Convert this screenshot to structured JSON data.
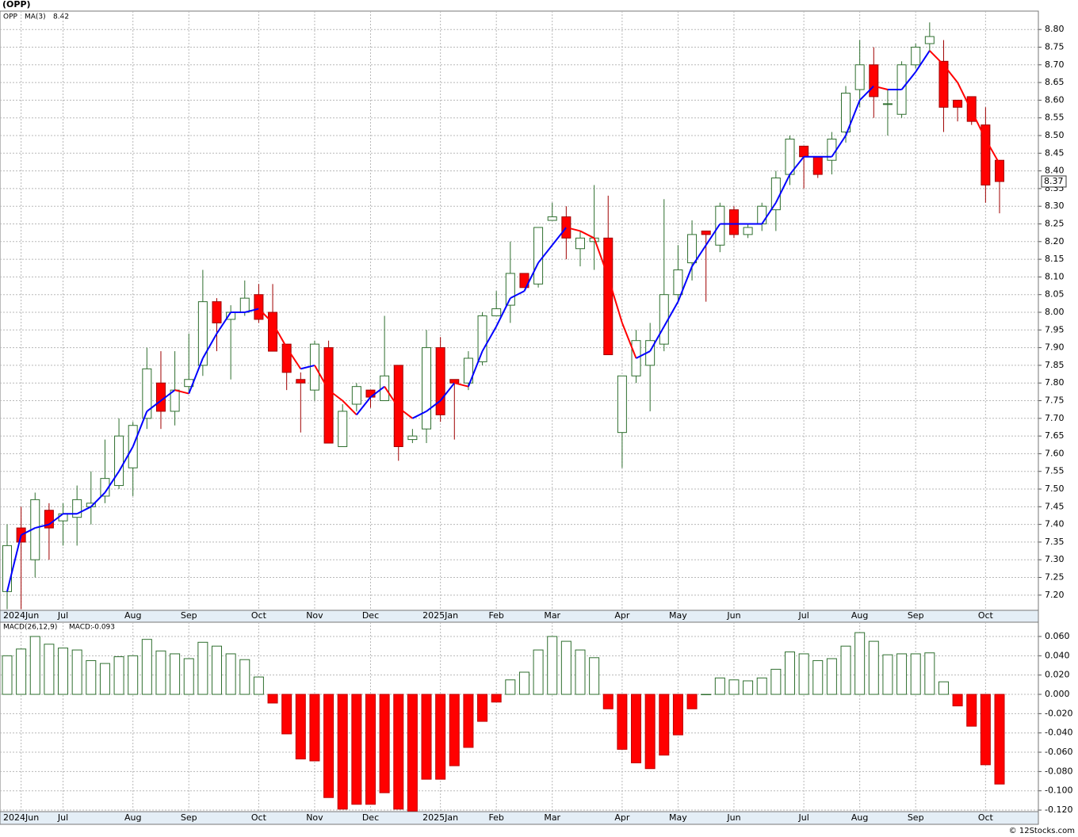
{
  "chart_data": [
    {
      "type": "candlestick",
      "title": "(OPP)",
      "name": "OPP",
      "categories": [
        null,
        "2024Jun",
        null,
        null,
        "Jul",
        null,
        null,
        null,
        null,
        "Aug",
        null,
        null,
        null,
        "Sep",
        null,
        null,
        null,
        null,
        "Oct",
        null,
        null,
        null,
        "Nov",
        null,
        null,
        null,
        "Dec",
        null,
        null,
        null,
        null,
        "2025Jan",
        null,
        null,
        null,
        "Feb",
        null,
        null,
        null,
        "Mar",
        null,
        null,
        null,
        null,
        "Apr",
        null,
        null,
        null,
        "May",
        null,
        null,
        null,
        "Jun",
        null,
        null,
        null,
        null,
        "Jul",
        null,
        null,
        null,
        "Aug",
        null,
        null,
        null,
        "Sep",
        null,
        null,
        null,
        null,
        "Oct",
        null
      ],
      "open": [
        7.21,
        7.39,
        7.3,
        7.44,
        7.41,
        7.42,
        7.45,
        7.48,
        7.51,
        7.56,
        7.7,
        7.8,
        7.72,
        7.79,
        7.85,
        8.03,
        7.98,
        8.0,
        8.05,
        8.0,
        7.91,
        7.81,
        7.78,
        7.9,
        7.62,
        7.74,
        7.78,
        7.75,
        7.85,
        7.64,
        7.67,
        7.9,
        7.81,
        7.8,
        7.86,
        7.99,
        8.02,
        8.11,
        8.08,
        8.26,
        8.27,
        8.18,
        8.2,
        8.21,
        7.66,
        7.82,
        7.85,
        7.91,
        8.05,
        8.14,
        8.23,
        8.19,
        8.29,
        8.22,
        8.25,
        8.29,
        8.39,
        8.47,
        8.44,
        8.43,
        8.51,
        8.63,
        8.7,
        8.59,
        8.56,
        8.7,
        8.76,
        8.71,
        8.6,
        8.61,
        8.53,
        8.43
      ],
      "high": [
        7.4,
        7.45,
        7.49,
        7.46,
        7.46,
        7.51,
        7.55,
        7.64,
        7.7,
        7.69,
        7.9,
        7.89,
        7.89,
        7.94,
        8.12,
        8.04,
        8.02,
        8.09,
        8.08,
        8.08,
        7.91,
        7.83,
        7.92,
        7.92,
        7.74,
        7.8,
        7.78,
        7.99,
        7.85,
        7.67,
        7.95,
        7.93,
        7.81,
        7.89,
        8.0,
        8.06,
        8.2,
        8.11,
        8.24,
        8.31,
        8.3,
        8.23,
        8.36,
        8.33,
        7.82,
        7.95,
        7.97,
        8.32,
        8.19,
        8.26,
        8.23,
        8.31,
        8.3,
        8.25,
        8.31,
        8.4,
        8.5,
        8.47,
        8.44,
        8.51,
        8.64,
        8.77,
        8.75,
        8.63,
        8.71,
        8.76,
        8.82,
        8.77,
        8.6,
        8.61,
        8.58,
        8.43
      ],
      "low": [
        7.16,
        7.16,
        7.25,
        7.3,
        7.34,
        7.34,
        7.4,
        7.46,
        7.5,
        7.48,
        7.67,
        7.67,
        7.68,
        7.77,
        7.82,
        7.89,
        7.81,
        7.99,
        7.97,
        7.89,
        7.78,
        7.66,
        7.75,
        7.63,
        7.62,
        7.72,
        7.73,
        7.75,
        7.58,
        7.63,
        7.63,
        7.69,
        7.64,
        7.78,
        7.85,
        7.99,
        7.97,
        8.07,
        8.07,
        8.26,
        8.15,
        8.13,
        8.12,
        7.88,
        7.56,
        7.8,
        7.72,
        7.89,
        8.03,
        8.09,
        8.03,
        8.17,
        8.21,
        8.21,
        8.23,
        8.23,
        8.36,
        8.35,
        8.38,
        8.39,
        8.48,
        8.58,
        8.55,
        8.5,
        8.55,
        8.69,
        8.74,
        8.51,
        8.54,
        8.53,
        8.31,
        8.28
      ],
      "close": [
        7.34,
        7.35,
        7.47,
        7.39,
        7.43,
        7.47,
        7.46,
        7.53,
        7.65,
        7.68,
        7.84,
        7.72,
        7.78,
        7.81,
        8.03,
        7.97,
        8.0,
        8.04,
        7.98,
        7.89,
        7.83,
        7.8,
        7.91,
        7.63,
        7.72,
        7.79,
        7.76,
        7.82,
        7.62,
        7.65,
        7.9,
        7.71,
        7.8,
        7.87,
        7.99,
        8.01,
        8.11,
        8.07,
        8.24,
        8.27,
        8.21,
        8.21,
        8.21,
        7.88,
        7.82,
        7.92,
        7.92,
        8.05,
        8.12,
        8.22,
        8.22,
        8.3,
        8.22,
        8.24,
        8.3,
        8.38,
        8.49,
        8.44,
        8.39,
        8.49,
        8.62,
        8.7,
        8.61,
        8.59,
        8.7,
        8.75,
        8.78,
        8.58,
        8.58,
        8.54,
        8.36,
        8.37
      ],
      "up_fill": "#ffffff",
      "up_stroke": "#2f6f2f",
      "down_fill": "#ff0000",
      "down_stroke": "#a00000",
      "series": [
        {
          "name": "MA(3)",
          "rising_color": "#0000ff",
          "falling_color": "#ff0000",
          "values": [
            7.21,
            7.37,
            7.39,
            7.4,
            7.43,
            7.43,
            7.45,
            7.49,
            7.55,
            7.62,
            7.72,
            7.75,
            7.78,
            7.77,
            7.87,
            7.94,
            8.0,
            8.0,
            8.01,
            7.97,
            7.9,
            7.84,
            7.85,
            7.78,
            7.75,
            7.71,
            7.76,
            7.79,
            7.73,
            7.7,
            7.72,
            7.75,
            7.8,
            7.79,
            7.89,
            7.96,
            8.04,
            8.06,
            8.14,
            8.19,
            8.24,
            8.23,
            8.21,
            8.1,
            7.97,
            7.87,
            7.89,
            7.96,
            8.03,
            8.13,
            8.19,
            8.25,
            8.25,
            8.25,
            8.25,
            8.31,
            8.39,
            8.44,
            8.44,
            8.44,
            8.5,
            8.6,
            8.64,
            8.63,
            8.63,
            8.68,
            8.74,
            8.7,
            8.65,
            8.57,
            8.49,
            8.42
          ]
        }
      ],
      "ylim": [
        7.157,
        8.852
      ],
      "yticks": [
        {
          "value": 7.2,
          "label": "7.20"
        },
        {
          "value": 7.25,
          "label": "7.25"
        },
        {
          "value": 7.3,
          "label": "7.30"
        },
        {
          "value": 7.35,
          "label": "7.35"
        },
        {
          "value": 7.4,
          "label": "7.40"
        },
        {
          "value": 7.45,
          "label": "7.45"
        },
        {
          "value": 7.5,
          "label": "7.50"
        },
        {
          "value": 7.55,
          "label": "7.55"
        },
        {
          "value": 7.6,
          "label": "7.60"
        },
        {
          "value": 7.65,
          "label": "7.65"
        },
        {
          "value": 7.7,
          "label": "7.70"
        },
        {
          "value": 7.75,
          "label": "7.75"
        },
        {
          "value": 7.8,
          "label": "7.80"
        },
        {
          "value": 7.85,
          "label": "7.85"
        },
        {
          "value": 7.9,
          "label": "7.90"
        },
        {
          "value": 7.95,
          "label": "7.95"
        },
        {
          "value": 8.0,
          "label": "8.00"
        },
        {
          "value": 8.05,
          "label": "8.05"
        },
        {
          "value": 8.1,
          "label": "8.10"
        },
        {
          "value": 8.15,
          "label": "8.15"
        },
        {
          "value": 8.2,
          "label": "8.20"
        },
        {
          "value": 8.25,
          "label": "8.25"
        },
        {
          "value": 8.3,
          "label": "8.30"
        },
        {
          "value": 8.35,
          "label": "8.35"
        },
        {
          "value": 8.4,
          "label": "8.40"
        },
        {
          "value": 8.45,
          "label": "8.45"
        },
        {
          "value": 8.5,
          "label": "8.50"
        },
        {
          "value": 8.55,
          "label": "8.55"
        },
        {
          "value": 8.6,
          "label": "8.60"
        },
        {
          "value": 8.65,
          "label": "8.65"
        },
        {
          "value": 8.7,
          "label": "8.70"
        },
        {
          "value": 8.75,
          "label": "8.75"
        },
        {
          "value": 8.8,
          "label": "8.80"
        }
      ],
      "grid": true
    },
    {
      "type": "bar",
      "title": "MACD(26,12,9)",
      "value_name": "MACD:",
      "categories": [
        null,
        "2024Jun",
        null,
        null,
        "Jul",
        null,
        null,
        null,
        null,
        "Aug",
        null,
        null,
        null,
        "Sep",
        null,
        null,
        null,
        null,
        "Oct",
        null,
        null,
        null,
        "Nov",
        null,
        null,
        null,
        "Dec",
        null,
        null,
        null,
        null,
        "2025Jan",
        null,
        null,
        null,
        "Feb",
        null,
        null,
        null,
        "Mar",
        null,
        null,
        null,
        null,
        "Apr",
        null,
        null,
        null,
        "May",
        null,
        null,
        null,
        "Jun",
        null,
        null,
        null,
        null,
        "Jul",
        null,
        null,
        null,
        "Aug",
        null,
        null,
        null,
        "Sep",
        null,
        null,
        null,
        null,
        "Oct",
        null
      ],
      "values": [
        0.04,
        0.047,
        0.06,
        0.052,
        0.048,
        0.046,
        0.035,
        0.032,
        0.039,
        0.04,
        0.057,
        0.045,
        0.042,
        0.037,
        0.054,
        0.05,
        0.042,
        0.036,
        0.018,
        -0.009,
        -0.041,
        -0.067,
        -0.069,
        -0.107,
        -0.119,
        -0.114,
        -0.114,
        -0.102,
        -0.119,
        -0.121,
        -0.088,
        -0.088,
        -0.074,
        -0.055,
        -0.028,
        -0.008,
        0.015,
        0.023,
        0.046,
        0.06,
        0.055,
        0.046,
        0.038,
        -0.015,
        -0.057,
        -0.071,
        -0.077,
        -0.063,
        -0.042,
        -0.015,
        0.0,
        0.017,
        0.015,
        0.014,
        0.017,
        0.026,
        0.044,
        0.042,
        0.035,
        0.037,
        0.05,
        0.064,
        0.055,
        0.041,
        0.042,
        0.042,
        0.043,
        0.013,
        -0.012,
        -0.033,
        -0.073,
        -0.093
      ],
      "positive_fill": "#ffffff",
      "positive_stroke": "#2f6f2f",
      "negative_fill": "#ff0000",
      "negative_stroke": "#c00000",
      "ylim": [
        -0.1216,
        0.0748
      ],
      "yticks": [
        {
          "value": -0.12,
          "label": "-0.120"
        },
        {
          "value": -0.1,
          "label": "-0.100"
        },
        {
          "value": -0.08,
          "label": "-0.080"
        },
        {
          "value": -0.06,
          "label": "-0.060"
        },
        {
          "value": -0.04,
          "label": "-0.040"
        },
        {
          "value": -0.02,
          "label": "-0.020"
        },
        {
          "value": 0.0,
          "label": "0.000"
        },
        {
          "value": 0.02,
          "label": "0.020"
        },
        {
          "value": 0.04,
          "label": "0.040"
        },
        {
          "value": 0.06,
          "label": "0.060"
        }
      ],
      "grid": true
    }
  ],
  "footer": "© 12Stocks.com"
}
